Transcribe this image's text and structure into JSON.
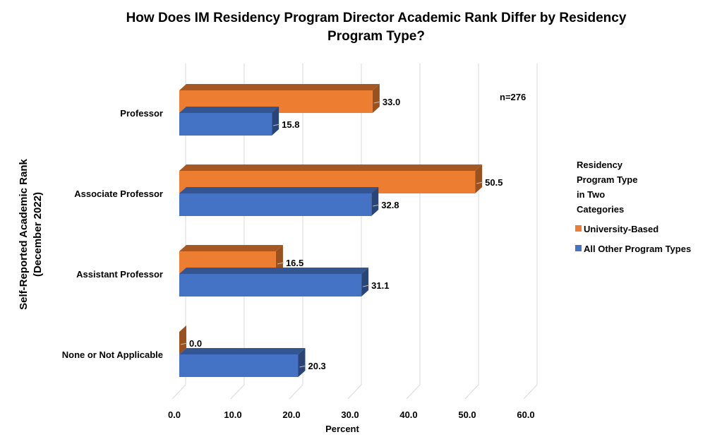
{
  "chart_data": {
    "type": "bar",
    "orientation": "horizontal",
    "style": "3d-clustered",
    "title": "How Does IM Residency Program Director Academic Rank Differ by Residency Program Type?",
    "title_lines": [
      "How Does IM Residency Program Director Academic Rank Differ by Residency",
      "Program Type?"
    ],
    "xlabel": "Percent",
    "ylabel_lines": [
      "Self-Reported Academic Rank",
      "(December 2022)"
    ],
    "annotation": "n=276",
    "categories": [
      "Professor",
      "Associate Professor",
      "Assistant Professor",
      "None or Not Applicable"
    ],
    "series": [
      {
        "name": "University-Based",
        "color": "#ED7D31",
        "values": [
          33.0,
          50.5,
          16.5,
          0.0
        ]
      },
      {
        "name": "All Other Program Types",
        "color": "#4472C4",
        "values": [
          15.8,
          32.8,
          31.1,
          20.3
        ]
      }
    ],
    "xlim": [
      0,
      60
    ],
    "xticks": [
      "0.0",
      "10.0",
      "20.0",
      "30.0",
      "40.0",
      "50.0",
      "60.0"
    ],
    "grid": true,
    "legend": {
      "title_lines": [
        "Residency",
        "Program Type",
        "in Two",
        "Categories"
      ],
      "position": "right"
    }
  }
}
